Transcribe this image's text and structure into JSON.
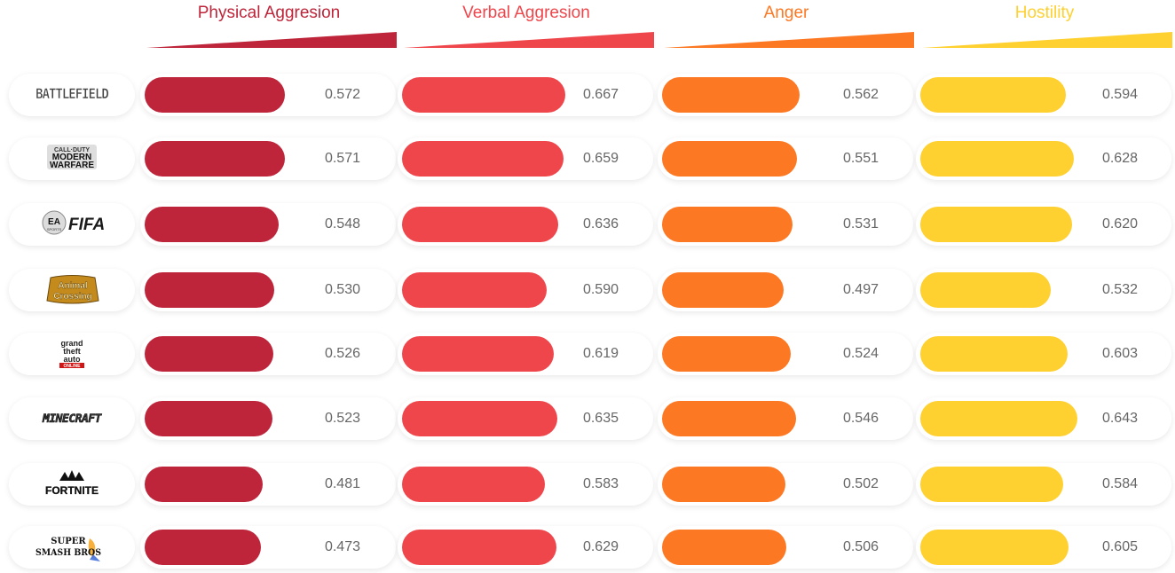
{
  "chart_data": {
    "type": "bar",
    "orientation": "horizontal",
    "layout": "small-multiples",
    "categories": [
      "Battlefield",
      "Call of Duty Modern Warfare",
      "FIFA",
      "Animal Crossing",
      "Grand Theft Auto Online",
      "Minecraft",
      "Fortnite",
      "Super Smash Bros"
    ],
    "series": [
      {
        "name": "Physical Aggresion",
        "color": "#be253a",
        "values": [
          0.572,
          0.571,
          0.548,
          0.53,
          0.526,
          0.523,
          0.481,
          0.473
        ],
        "labels": [
          "0.572",
          "0.571",
          "0.548",
          "0.530",
          "0.526",
          "0.523",
          "0.481",
          "0.473"
        ]
      },
      {
        "name": "Verbal Aggresion",
        "color": "#ef464c",
        "values": [
          0.667,
          0.659,
          0.636,
          0.59,
          0.619,
          0.635,
          0.583,
          0.629
        ],
        "labels": [
          "0.667",
          "0.659",
          "0.636",
          "0.590",
          "0.619",
          "0.635",
          "0.583",
          "0.629"
        ]
      },
      {
        "name": "Anger",
        "color": "#fd7823",
        "values": [
          0.562,
          0.551,
          0.531,
          0.497,
          0.524,
          0.546,
          0.502,
          0.506
        ],
        "labels": [
          "0.562",
          "0.551",
          "0.531",
          "0.497",
          "0.524",
          "0.546",
          "0.502",
          "0.506"
        ]
      },
      {
        "name": "Hostility",
        "color": "#fed030",
        "values": [
          0.594,
          0.628,
          0.62,
          0.532,
          0.603,
          0.643,
          0.584,
          0.605
        ],
        "labels": [
          "0.594",
          "0.628",
          "0.620",
          "0.532",
          "0.603",
          "0.643",
          "0.584",
          "0.605"
        ]
      }
    ],
    "logo_text": {
      "battlefield": "BATTLEFIELD",
      "cod_line1": "CALL·DUTY",
      "cod_line2": "MODERN",
      "cod_line3": "WARFARE",
      "fifa_badge": "EA",
      "fifa_badge_sub": "SPORTS",
      "fifa": "FIFA",
      "ac_line1": "Animal",
      "ac_line2": "Crossing",
      "gta_line1": "grand",
      "gta_line2": "theft",
      "gta_line3": "auto",
      "gta_online": "ONLINE",
      "minecraft": "MINECRAFT",
      "fortnite": "FORTNITE",
      "ssb_line1": "SUPER",
      "ssb_line2": "SMASH BROS"
    },
    "title": "",
    "xlabel": "",
    "ylabel": "",
    "xlim": [
      0,
      0.75
    ]
  }
}
